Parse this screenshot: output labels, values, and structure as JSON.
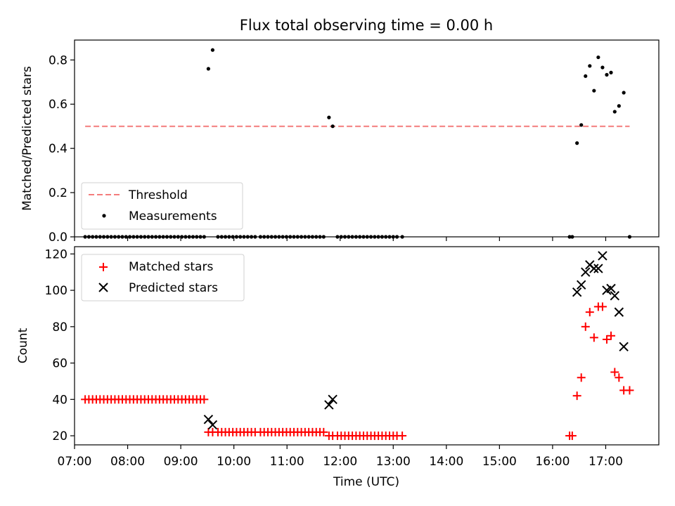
{
  "title": "Flux total observing time = 0.00 h",
  "colors": {
    "threshold": "#f47c7c",
    "measurements": "#000000",
    "matched": "#ff0000",
    "predicted": "#000000"
  },
  "chart_data": [
    {
      "type": "scatter",
      "ylabel": "Matched/Predicted stars",
      "xlim": [
        7.0,
        18.0
      ],
      "ylim": [
        0.0,
        0.89
      ],
      "yticks": [
        0.0,
        0.2,
        0.4,
        0.6,
        0.8
      ],
      "ytick_labels": [
        "0.0",
        "0.2",
        "0.4",
        "0.6",
        "0.8"
      ],
      "legend_position": "lower-left",
      "threshold": {
        "name": "Threshold",
        "value": 0.5,
        "x_range": [
          7.2,
          17.45
        ]
      },
      "series": [
        {
          "name": "Measurements",
          "points": [
            [
              7.2,
              0
            ],
            [
              7.27,
              0
            ],
            [
              7.34,
              0
            ],
            [
              7.41,
              0
            ],
            [
              7.48,
              0
            ],
            [
              7.55,
              0
            ],
            [
              7.62,
              0
            ],
            [
              7.69,
              0
            ],
            [
              7.76,
              0
            ],
            [
              7.83,
              0
            ],
            [
              7.9,
              0
            ],
            [
              7.97,
              0
            ],
            [
              8.04,
              0
            ],
            [
              8.11,
              0
            ],
            [
              8.18,
              0
            ],
            [
              8.25,
              0
            ],
            [
              8.32,
              0
            ],
            [
              8.39,
              0
            ],
            [
              8.46,
              0
            ],
            [
              8.53,
              0
            ],
            [
              8.6,
              0
            ],
            [
              8.67,
              0
            ],
            [
              8.74,
              0
            ],
            [
              8.81,
              0
            ],
            [
              8.88,
              0
            ],
            [
              8.95,
              0
            ],
            [
              9.02,
              0
            ],
            [
              9.09,
              0
            ],
            [
              9.16,
              0
            ],
            [
              9.23,
              0
            ],
            [
              9.3,
              0
            ],
            [
              9.37,
              0
            ],
            [
              9.44,
              0
            ],
            [
              9.52,
              0.76
            ],
            [
              9.6,
              0.845
            ],
            [
              9.7,
              0
            ],
            [
              9.77,
              0
            ],
            [
              9.84,
              0
            ],
            [
              9.91,
              0
            ],
            [
              9.98,
              0
            ],
            [
              10.05,
              0
            ],
            [
              10.12,
              0
            ],
            [
              10.19,
              0
            ],
            [
              10.26,
              0
            ],
            [
              10.33,
              0
            ],
            [
              10.4,
              0
            ],
            [
              10.5,
              0
            ],
            [
              10.57,
              0
            ],
            [
              10.64,
              0
            ],
            [
              10.71,
              0
            ],
            [
              10.78,
              0
            ],
            [
              10.85,
              0
            ],
            [
              10.92,
              0
            ],
            [
              10.99,
              0
            ],
            [
              11.06,
              0
            ],
            [
              11.13,
              0
            ],
            [
              11.2,
              0
            ],
            [
              11.27,
              0
            ],
            [
              11.34,
              0
            ],
            [
              11.41,
              0
            ],
            [
              11.48,
              0
            ],
            [
              11.55,
              0
            ],
            [
              11.62,
              0
            ],
            [
              11.69,
              0
            ],
            [
              11.79,
              0.54
            ],
            [
              11.86,
              0.5
            ],
            [
              11.95,
              0
            ],
            [
              12.02,
              0
            ],
            [
              12.09,
              0
            ],
            [
              12.16,
              0
            ],
            [
              12.23,
              0
            ],
            [
              12.3,
              0
            ],
            [
              12.37,
              0
            ],
            [
              12.44,
              0
            ],
            [
              12.51,
              0
            ],
            [
              12.58,
              0
            ],
            [
              12.65,
              0
            ],
            [
              12.72,
              0
            ],
            [
              12.79,
              0
            ],
            [
              12.86,
              0
            ],
            [
              12.93,
              0
            ],
            [
              13.0,
              0
            ],
            [
              13.07,
              0
            ],
            [
              13.17,
              0
            ],
            [
              16.32,
              0
            ],
            [
              16.37,
              0
            ],
            [
              16.46,
              0.424
            ],
            [
              16.54,
              0.506
            ],
            [
              16.62,
              0.727
            ],
            [
              16.7,
              0.773
            ],
            [
              16.78,
              0.661
            ],
            [
              16.86,
              0.812
            ],
            [
              16.94,
              0.766
            ],
            [
              17.02,
              0.733
            ],
            [
              17.1,
              0.743
            ],
            [
              17.17,
              0.566
            ],
            [
              17.25,
              0.592
            ],
            [
              17.34,
              0.652
            ],
            [
              17.45,
              0
            ]
          ]
        }
      ]
    },
    {
      "type": "scatter",
      "xlabel": "Time (UTC)",
      "ylabel": "Count",
      "xlim": [
        7.0,
        18.0
      ],
      "ylim": [
        15,
        124
      ],
      "yticks": [
        20,
        40,
        60,
        80,
        100,
        120
      ],
      "ytick_labels": [
        "20",
        "40",
        "60",
        "80",
        "100",
        "120"
      ],
      "xticks": [
        7,
        8,
        9,
        10,
        11,
        12,
        13,
        14,
        15,
        16,
        17
      ],
      "xtick_labels": [
        "07:00",
        "08:00",
        "09:00",
        "10:00",
        "11:00",
        "12:00",
        "13:00",
        "14:00",
        "15:00",
        "16:00",
        "17:00"
      ],
      "legend_position": "upper-left",
      "series": [
        {
          "name": "Matched stars",
          "marker": "plus",
          "points": [
            [
              7.2,
              40
            ],
            [
              7.27,
              40
            ],
            [
              7.34,
              40
            ],
            [
              7.41,
              40
            ],
            [
              7.48,
              40
            ],
            [
              7.55,
              40
            ],
            [
              7.62,
              40
            ],
            [
              7.69,
              40
            ],
            [
              7.76,
              40
            ],
            [
              7.83,
              40
            ],
            [
              7.9,
              40
            ],
            [
              7.97,
              40
            ],
            [
              8.04,
              40
            ],
            [
              8.11,
              40
            ],
            [
              8.18,
              40
            ],
            [
              8.25,
              40
            ],
            [
              8.32,
              40
            ],
            [
              8.39,
              40
            ],
            [
              8.46,
              40
            ],
            [
              8.53,
              40
            ],
            [
              8.6,
              40
            ],
            [
              8.67,
              40
            ],
            [
              8.74,
              40
            ],
            [
              8.81,
              40
            ],
            [
              8.88,
              40
            ],
            [
              8.95,
              40
            ],
            [
              9.02,
              40
            ],
            [
              9.09,
              40
            ],
            [
              9.16,
              40
            ],
            [
              9.23,
              40
            ],
            [
              9.3,
              40
            ],
            [
              9.37,
              40
            ],
            [
              9.44,
              40
            ],
            [
              9.52,
              22
            ],
            [
              9.6,
              22
            ],
            [
              9.7,
              22
            ],
            [
              9.77,
              22
            ],
            [
              9.84,
              22
            ],
            [
              9.91,
              22
            ],
            [
              9.98,
              22
            ],
            [
              10.05,
              22
            ],
            [
              10.12,
              22
            ],
            [
              10.19,
              22
            ],
            [
              10.26,
              22
            ],
            [
              10.33,
              22
            ],
            [
              10.4,
              22
            ],
            [
              10.5,
              22
            ],
            [
              10.57,
              22
            ],
            [
              10.64,
              22
            ],
            [
              10.71,
              22
            ],
            [
              10.78,
              22
            ],
            [
              10.85,
              22
            ],
            [
              10.92,
              22
            ],
            [
              10.99,
              22
            ],
            [
              11.06,
              22
            ],
            [
              11.13,
              22
            ],
            [
              11.2,
              22
            ],
            [
              11.27,
              22
            ],
            [
              11.34,
              22
            ],
            [
              11.41,
              22
            ],
            [
              11.48,
              22
            ],
            [
              11.55,
              22
            ],
            [
              11.62,
              22
            ],
            [
              11.69,
              22
            ],
            [
              11.79,
              20
            ],
            [
              11.86,
              20
            ],
            [
              11.95,
              20
            ],
            [
              12.02,
              20
            ],
            [
              12.09,
              20
            ],
            [
              12.16,
              20
            ],
            [
              12.23,
              20
            ],
            [
              12.3,
              20
            ],
            [
              12.37,
              20
            ],
            [
              12.44,
              20
            ],
            [
              12.51,
              20
            ],
            [
              12.58,
              20
            ],
            [
              12.65,
              20
            ],
            [
              12.72,
              20
            ],
            [
              12.79,
              20
            ],
            [
              12.86,
              20
            ],
            [
              12.93,
              20
            ],
            [
              13.0,
              20
            ],
            [
              13.07,
              20
            ],
            [
              13.17,
              20
            ],
            [
              16.32,
              20
            ],
            [
              16.37,
              20
            ],
            [
              16.46,
              42
            ],
            [
              16.54,
              52
            ],
            [
              16.62,
              80
            ],
            [
              16.7,
              88
            ],
            [
              16.78,
              74
            ],
            [
              16.86,
              91
            ],
            [
              16.94,
              91
            ],
            [
              17.02,
              73
            ],
            [
              17.1,
              75
            ],
            [
              17.17,
              55
            ],
            [
              17.25,
              52
            ],
            [
              17.34,
              45
            ],
            [
              17.45,
              45
            ]
          ]
        },
        {
          "name": "Predicted stars",
          "marker": "x",
          "points": [
            [
              9.52,
              29
            ],
            [
              9.6,
              26
            ],
            [
              11.79,
              37
            ],
            [
              11.86,
              40
            ],
            [
              16.46,
              99
            ],
            [
              16.54,
              103
            ],
            [
              16.62,
              110
            ],
            [
              16.7,
              114
            ],
            [
              16.78,
              112
            ],
            [
              16.86,
              112
            ],
            [
              16.94,
              119
            ],
            [
              17.02,
              100
            ],
            [
              17.1,
              101
            ],
            [
              17.17,
              97
            ],
            [
              17.25,
              88
            ],
            [
              17.34,
              69
            ]
          ]
        }
      ]
    }
  ]
}
